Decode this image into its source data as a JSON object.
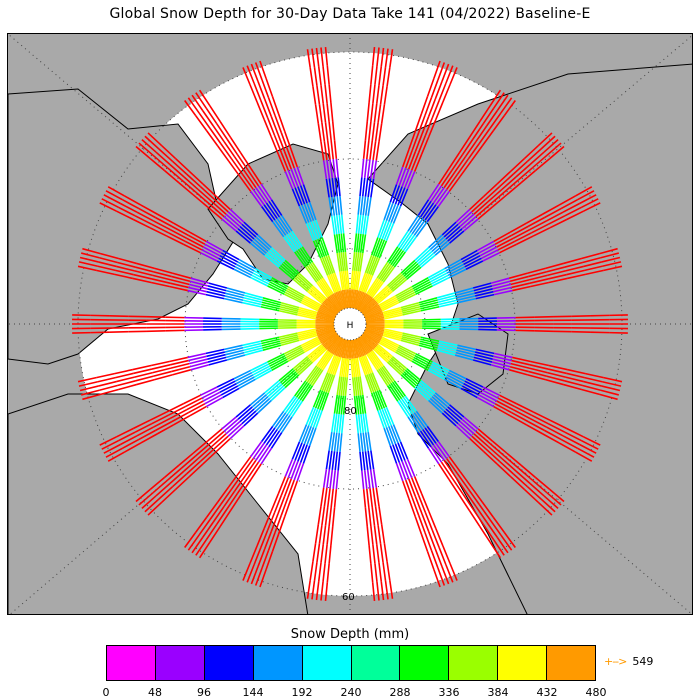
{
  "title": "Global Snow Depth for 30-Day Data Take 141 (04/2022) Baseline-E",
  "map": {
    "projection": "north-polar-stereographic",
    "ocean_color": "#ffffff",
    "land_color": "#a9a9a9",
    "graticule": "dotted",
    "pole_label": "H",
    "latitude_labels": [
      "80",
      "60"
    ]
  },
  "legend": {
    "title": "Snow Depth (mm)",
    "ticks": [
      "0",
      "48",
      "96",
      "144",
      "192",
      "240",
      "288",
      "336",
      "384",
      "432",
      "480"
    ],
    "colors": [
      "#ff00ff",
      "#9a00ff",
      "#0000ff",
      "#0096ff",
      "#00ffff",
      "#00ff9a",
      "#00ff00",
      "#9aff00",
      "#ffff00",
      "#ff9a00"
    ],
    "overflow_color": "#ff0000",
    "overflow_label": "549"
  }
}
